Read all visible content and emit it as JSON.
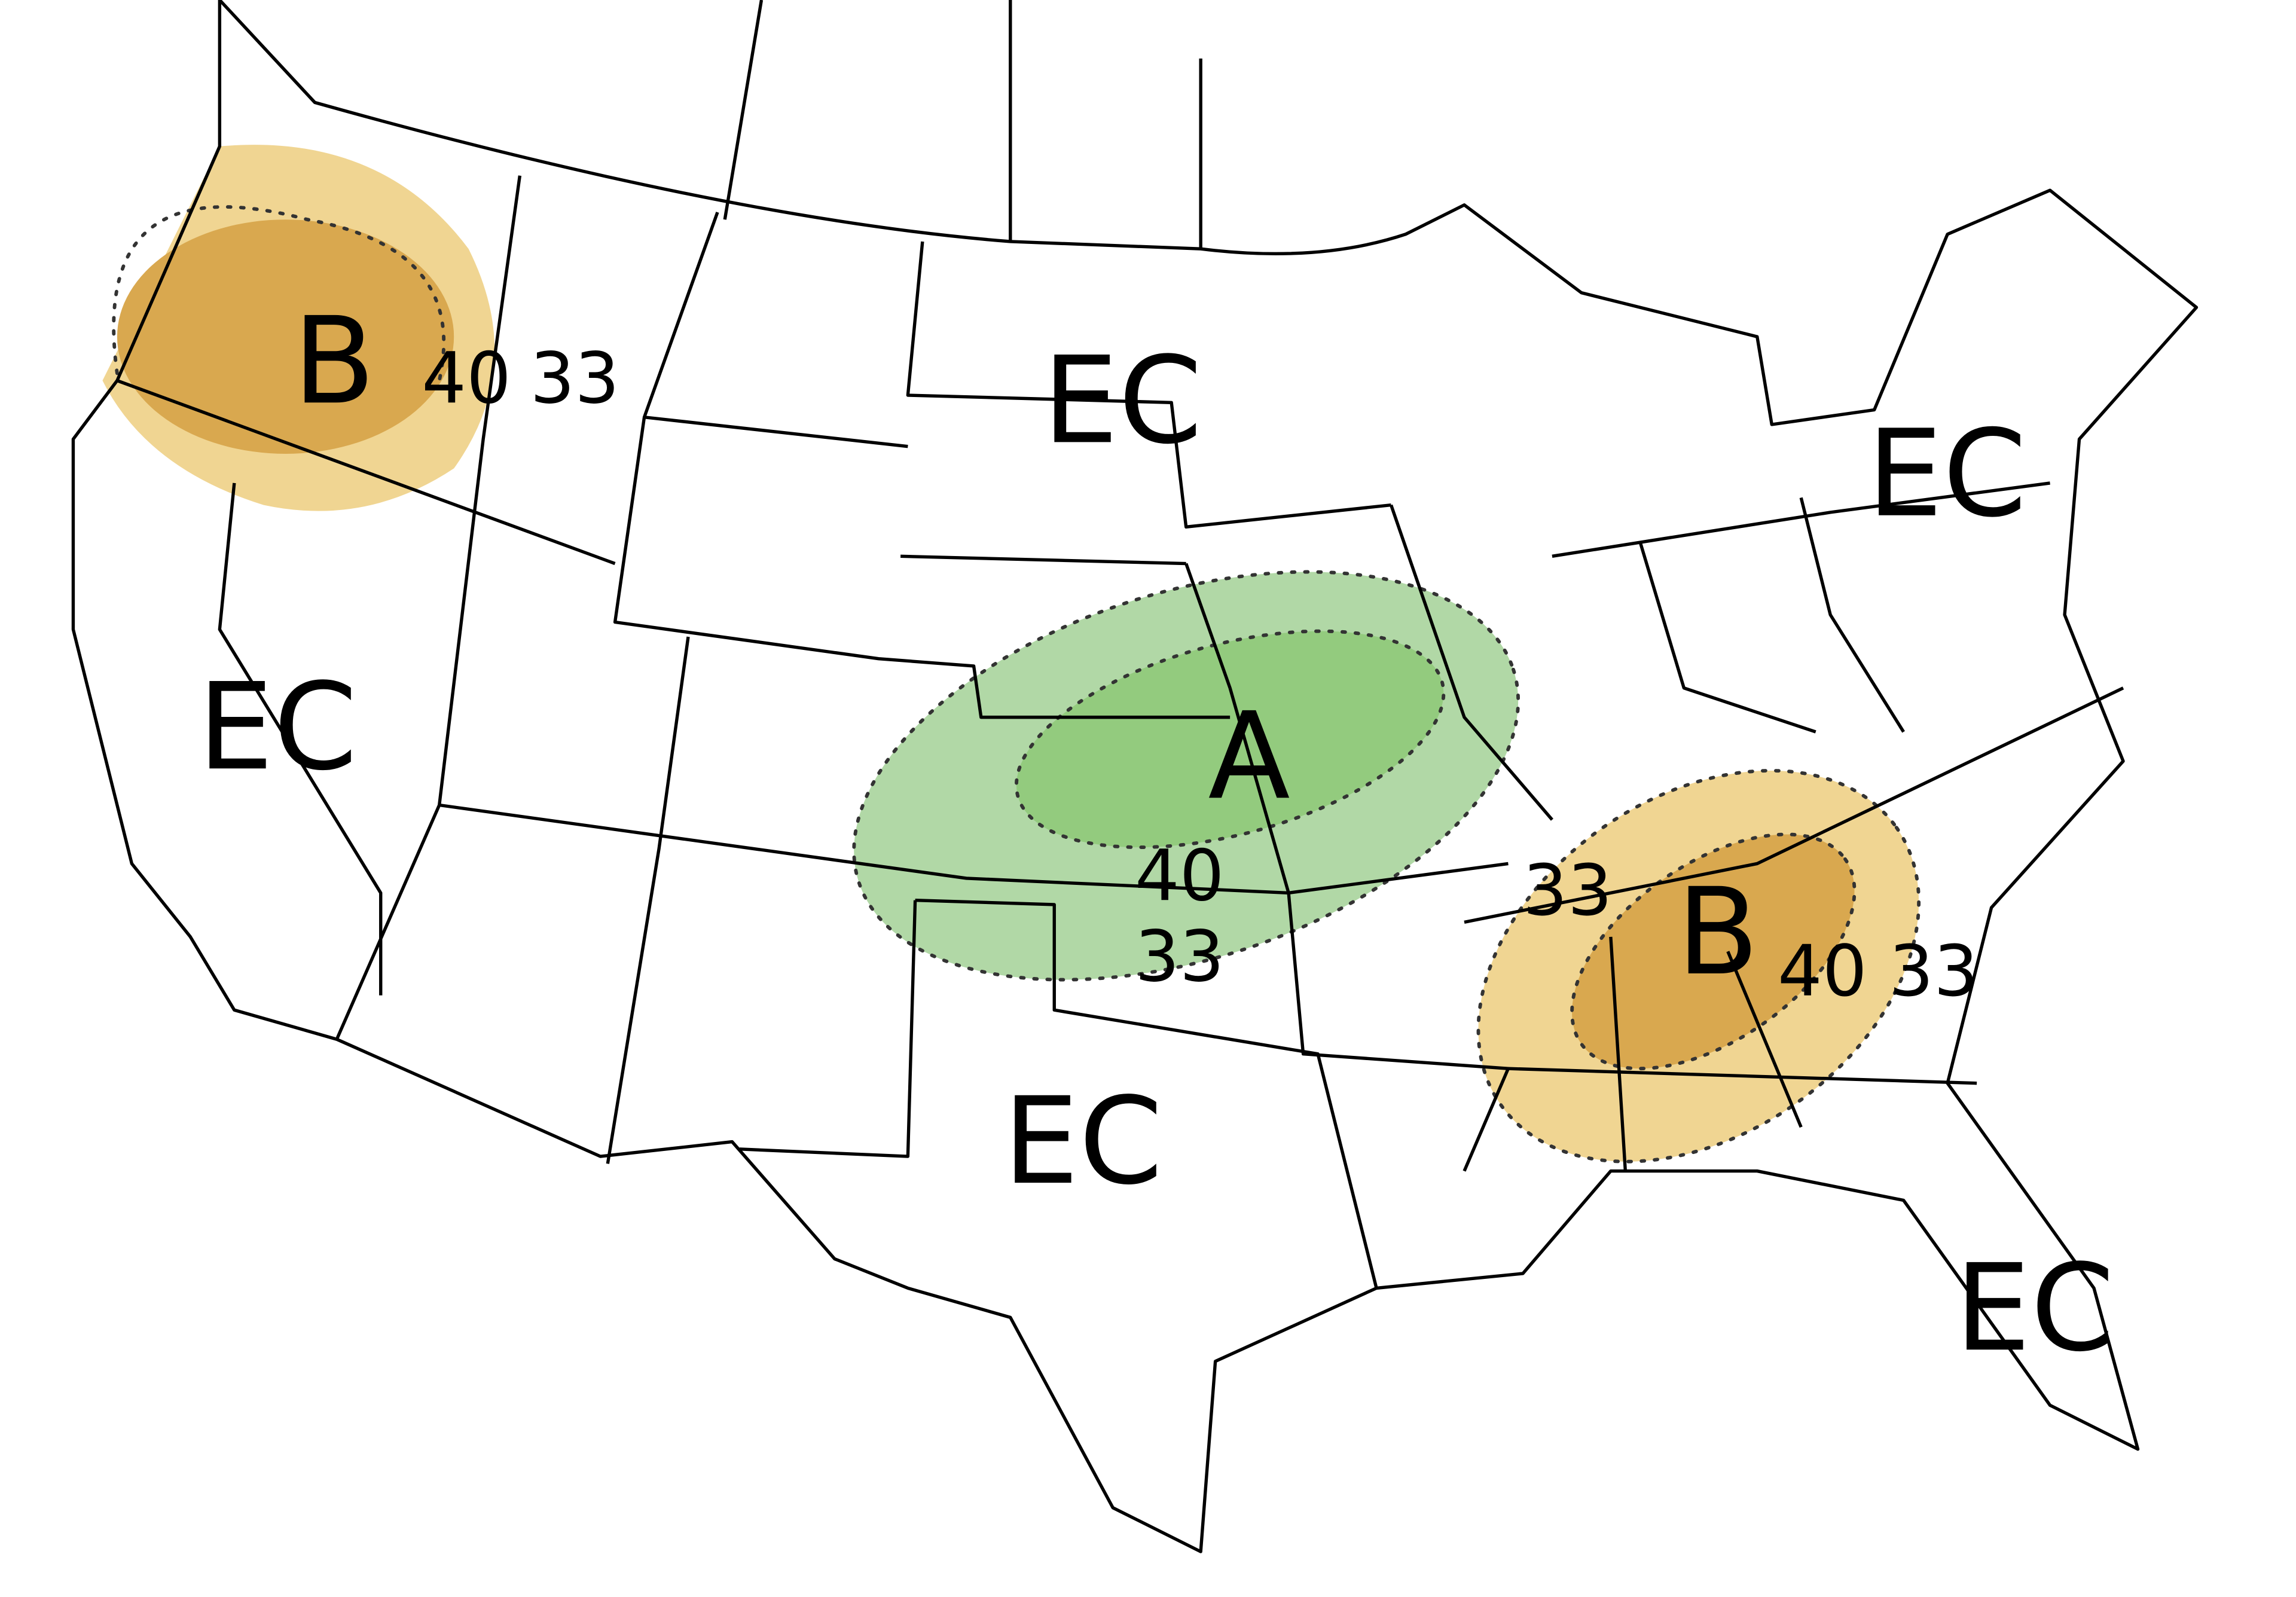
{
  "colors": {
    "below_33": "#f0d592",
    "below_40": "#d9a84f",
    "above_33": "#b1d8a6",
    "above_40": "#93cb7e",
    "border": "#000000",
    "background": "#ffffff"
  },
  "areas": [
    {
      "id": "northwest",
      "category_label": "B",
      "contours": [
        "40",
        "33"
      ]
    },
    {
      "id": "central-plains",
      "category_label": "A",
      "contours": [
        "40",
        "33"
      ]
    },
    {
      "id": "southeast",
      "category_label": "B",
      "contours": [
        "33",
        "40",
        "33"
      ]
    }
  ],
  "ec_labels": [
    "EC",
    "EC",
    "EC",
    "EC",
    "EC"
  ]
}
